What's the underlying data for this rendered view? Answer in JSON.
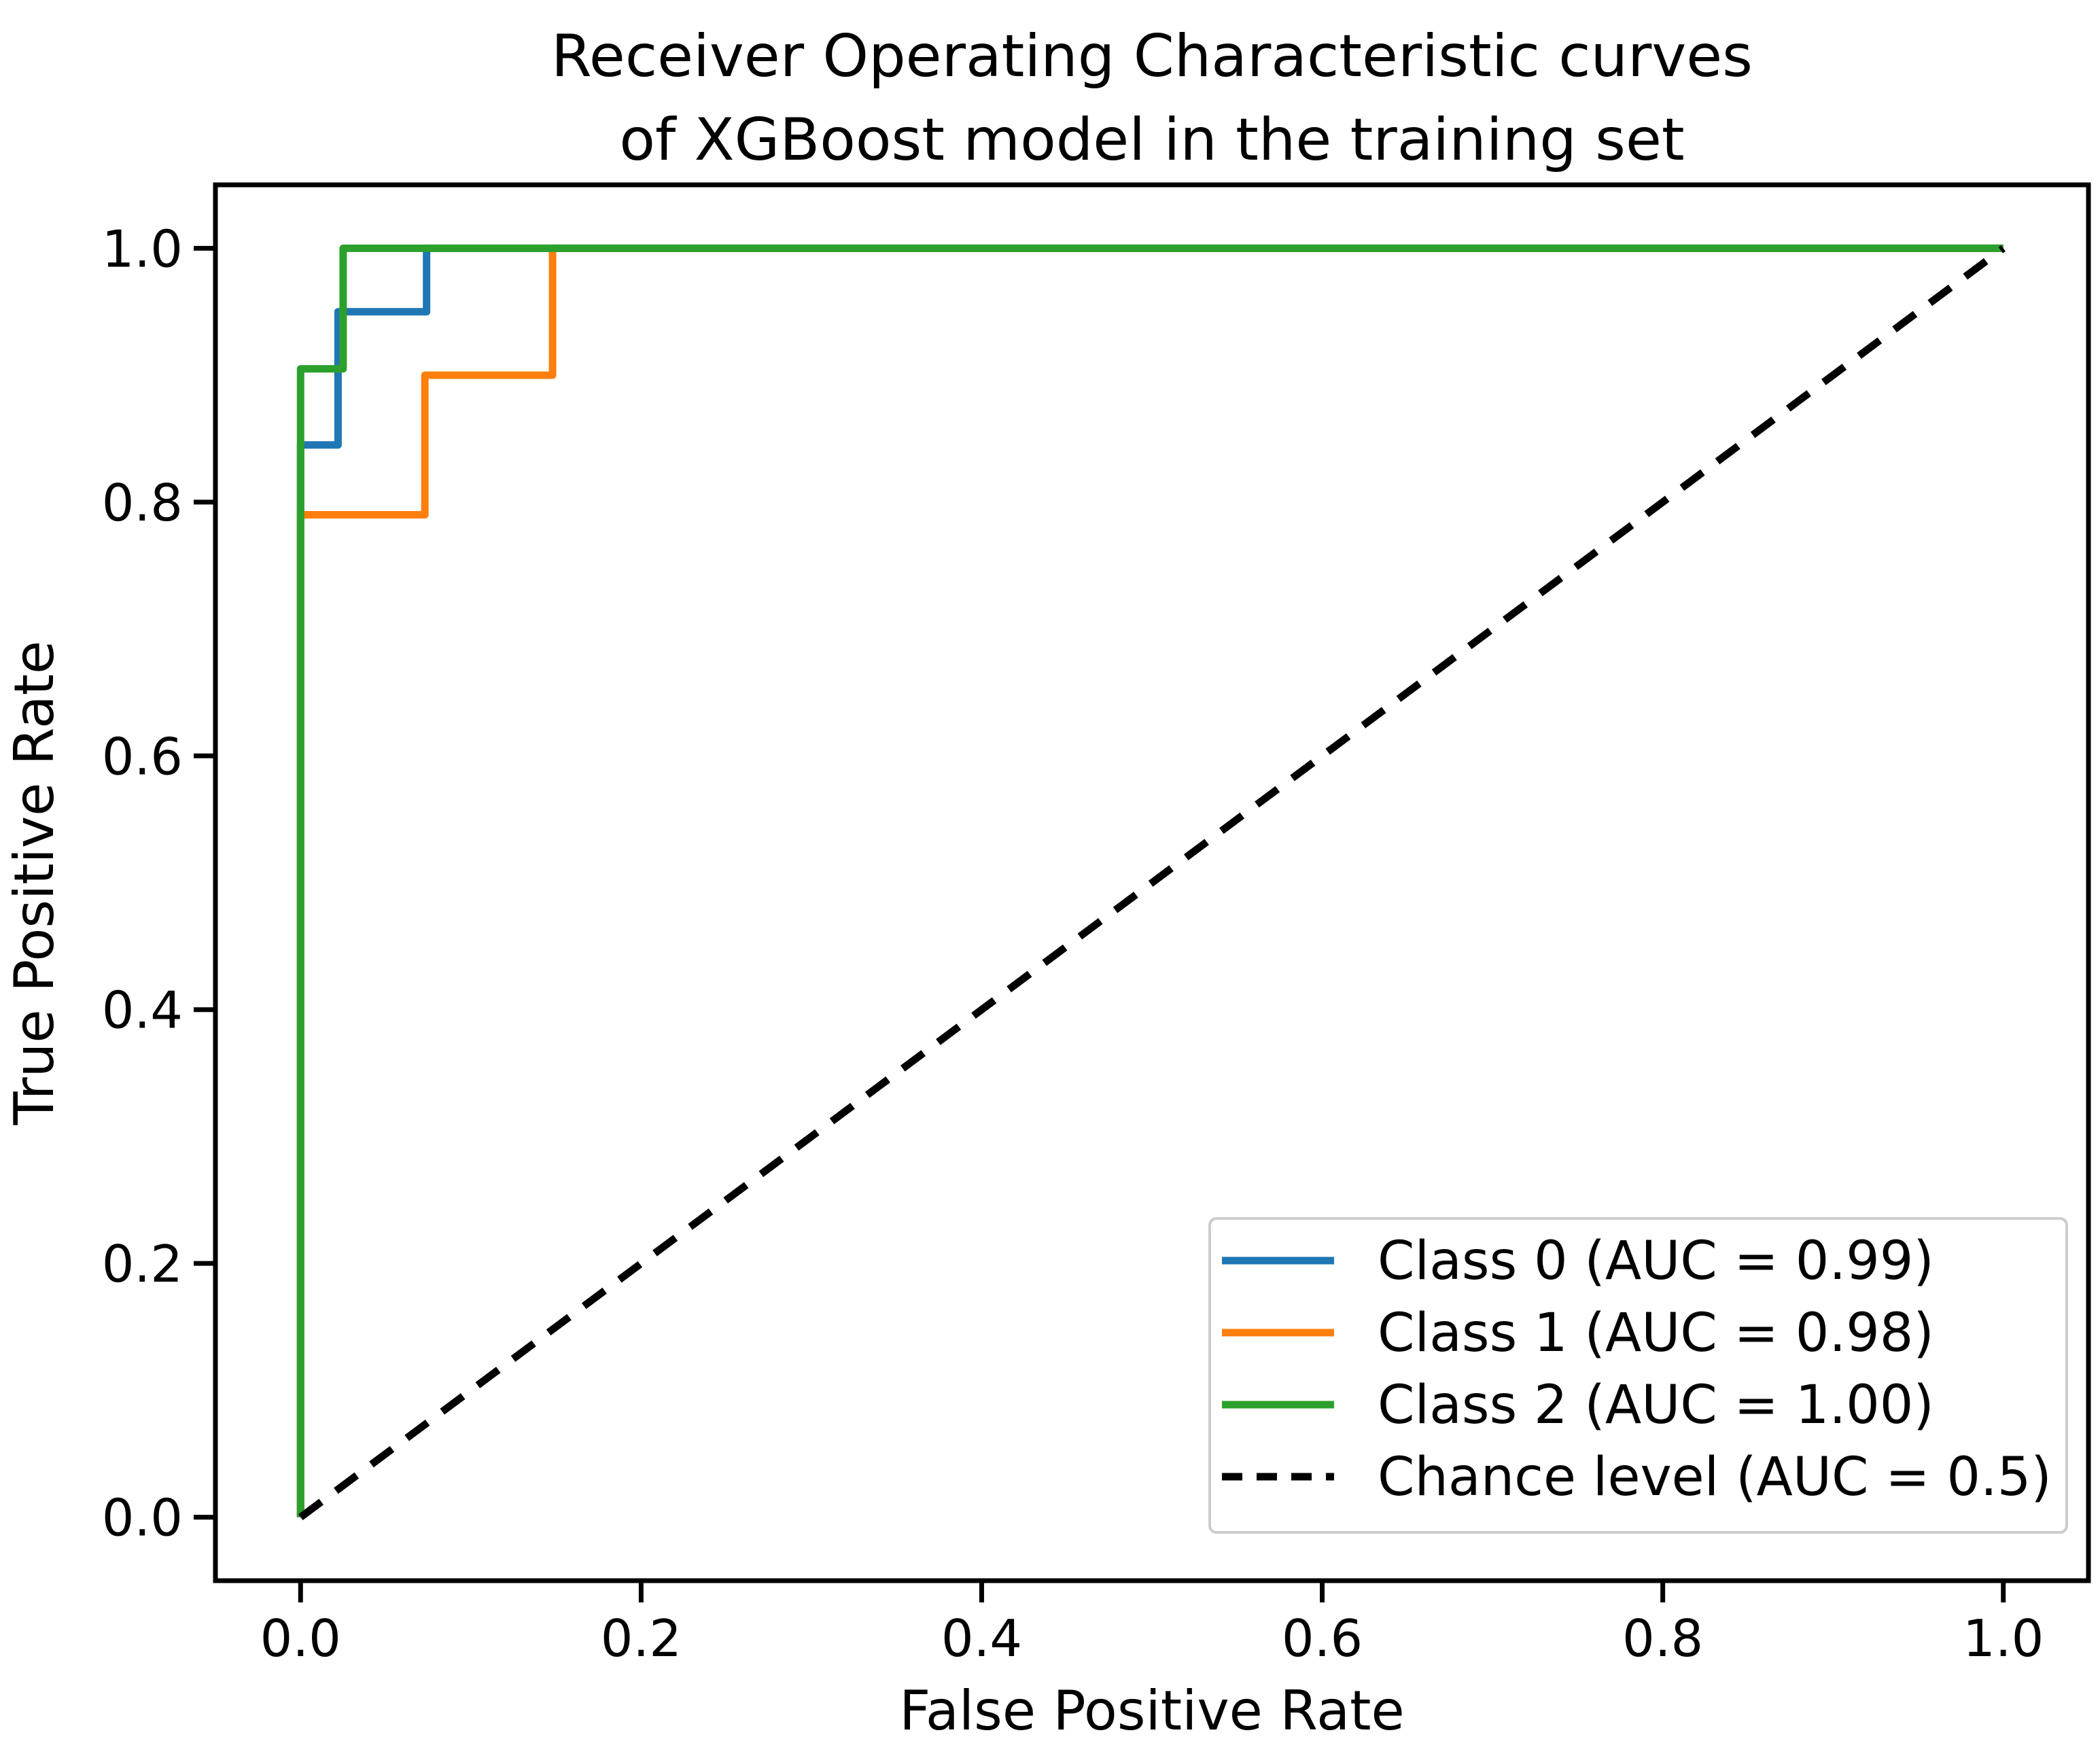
{
  "chart_data": {
    "type": "line",
    "title": "Receiver Operating Characteristic curves of XGBoost model in the training set",
    "title_line1": "Receiver Operating Characteristic curves",
    "title_line2": "of XGBoost model in the training set",
    "xlabel": "False Positive Rate",
    "ylabel": "True Positive Rate",
    "xlim": [
      -0.05,
      1.05
    ],
    "ylim": [
      -0.05,
      1.05
    ],
    "grid": false,
    "legend_position": "lower right",
    "x_ticks": [
      0.0,
      0.2,
      0.4,
      0.6,
      0.8,
      1.0
    ],
    "x_tick_labels": [
      "0.0",
      "0.2",
      "0.4",
      "0.6",
      "0.8",
      "1.0"
    ],
    "y_ticks": [
      0.0,
      0.2,
      0.4,
      0.6,
      0.8,
      1.0
    ],
    "y_tick_labels": [
      "0.0",
      "0.2",
      "0.4",
      "0.6",
      "0.8",
      "1.0"
    ],
    "series": [
      {
        "id": "class-0",
        "name": "Class 0",
        "legend_label": "Class 0 (AUC = 0.99)",
        "auc": 0.99,
        "color": "#1f77b4",
        "style": "solid",
        "x": [
          0,
          0,
          0.022,
          0.022,
          0.074,
          0.074,
          1
        ],
        "y": [
          0,
          0.845,
          0.845,
          0.95,
          0.95,
          1,
          1
        ]
      },
      {
        "id": "class-1",
        "name": "Class 1",
        "legend_label": "Class 1 (AUC = 0.98)",
        "auc": 0.98,
        "color": "#ff7f0e",
        "style": "solid",
        "x": [
          0,
          0,
          0.073,
          0.073,
          0.148,
          0.148,
          1
        ],
        "y": [
          0,
          0.79,
          0.79,
          0.9,
          0.9,
          1,
          1
        ]
      },
      {
        "id": "class-2",
        "name": "Class 2",
        "legend_label": "Class 2 (AUC = 1.00)",
        "auc": 1.0,
        "color": "#2ca02c",
        "style": "solid",
        "x": [
          0,
          0,
          0.025,
          0.025,
          1
        ],
        "y": [
          0,
          0.905,
          0.905,
          1,
          1
        ]
      },
      {
        "id": "chance-level",
        "name": "Chance level",
        "legend_label": "Chance level (AUC = 0.5)",
        "auc": 0.5,
        "color": "#000000",
        "style": "dashed",
        "x": [
          0,
          1
        ],
        "y": [
          0,
          1
        ]
      }
    ],
    "colors": {
      "axes": "#000000",
      "background": "#ffffff",
      "legend_border": "#cccccc",
      "legend_fill": "rgba(255,255,255,0.8)"
    }
  }
}
